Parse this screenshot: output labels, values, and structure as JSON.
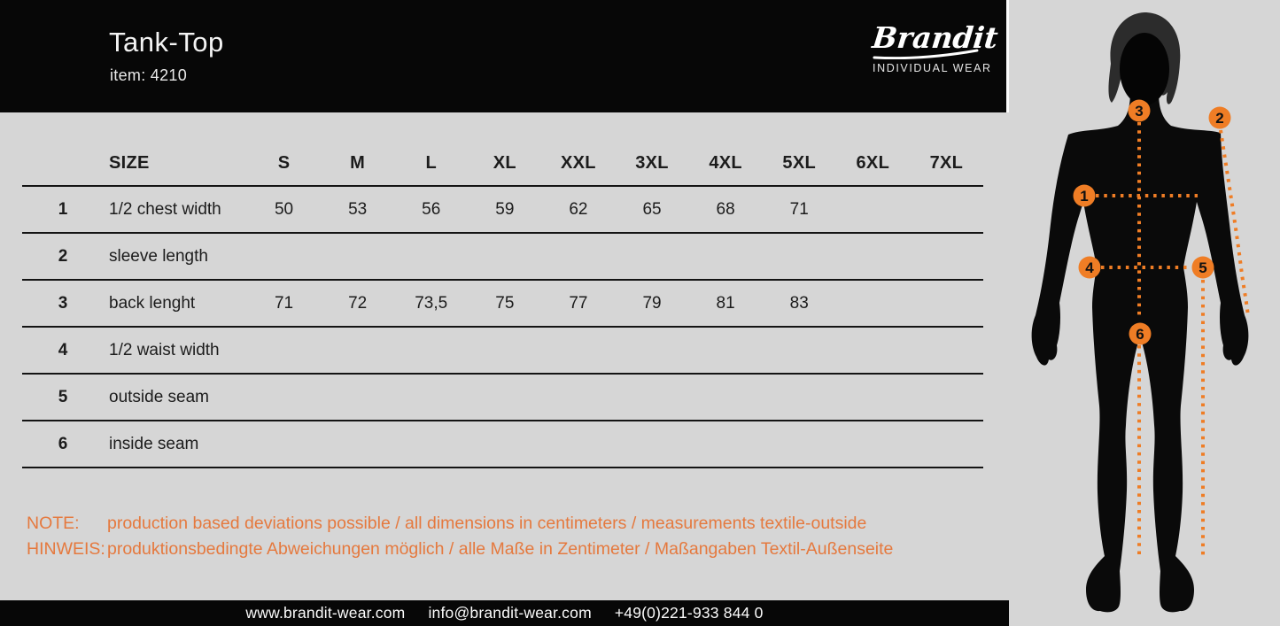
{
  "header": {
    "title": "Tank-Top",
    "item": "item: 4210",
    "logo": {
      "brand": "Brandit",
      "tagline": "INDIVIDUAL WEAR"
    }
  },
  "table": {
    "size_header": "SIZE",
    "columns": [
      "S",
      "M",
      "L",
      "XL",
      "XXL",
      "3XL",
      "4XL",
      "5XL",
      "6XL",
      "7XL"
    ],
    "rows": [
      {
        "num": "1",
        "label": "1/2 chest width",
        "values": [
          "50",
          "53",
          "56",
          "59",
          "62",
          "65",
          "68",
          "71",
          "",
          ""
        ]
      },
      {
        "num": "2",
        "label": "sleeve length",
        "values": [
          "",
          "",
          "",
          "",
          "",
          "",
          "",
          "",
          "",
          ""
        ]
      },
      {
        "num": "3",
        "label": "back lenght",
        "values": [
          "71",
          "72",
          "73,5",
          "75",
          "77",
          "79",
          "81",
          "83",
          "",
          ""
        ]
      },
      {
        "num": "4",
        "label": "1/2 waist width",
        "values": [
          "",
          "",
          "",
          "",
          "",
          "",
          "",
          "",
          "",
          ""
        ]
      },
      {
        "num": "5",
        "label": "outside seam",
        "values": [
          "",
          "",
          "",
          "",
          "",
          "",
          "",
          "",
          "",
          ""
        ]
      },
      {
        "num": "6",
        "label": "inside seam",
        "values": [
          "",
          "",
          "",
          "",
          "",
          "",
          "",
          "",
          "",
          ""
        ]
      }
    ]
  },
  "notes": [
    {
      "label": "NOTE:",
      "text": "production based deviations possible / all dimensions in centimeters / measurements textile-outside"
    },
    {
      "label": "HINWEIS:",
      "text": "produktionsbedingte Abweichungen möglich / alle Maße in Zentimeter / Maßangaben Textil-Außenseite"
    }
  ],
  "footer": {
    "website": "www.brandit-wear.com",
    "email": "info@brandit-wear.com",
    "phone": "+49(0)221-933 844 0"
  },
  "figure": {
    "markers": [
      "1",
      "2",
      "3",
      "4",
      "5",
      "6"
    ]
  },
  "colors": {
    "accent_orange": "#EF7D25",
    "note_orange": "#E5793E",
    "header_black": "#070707",
    "background_gray": "#D6D6D6"
  }
}
